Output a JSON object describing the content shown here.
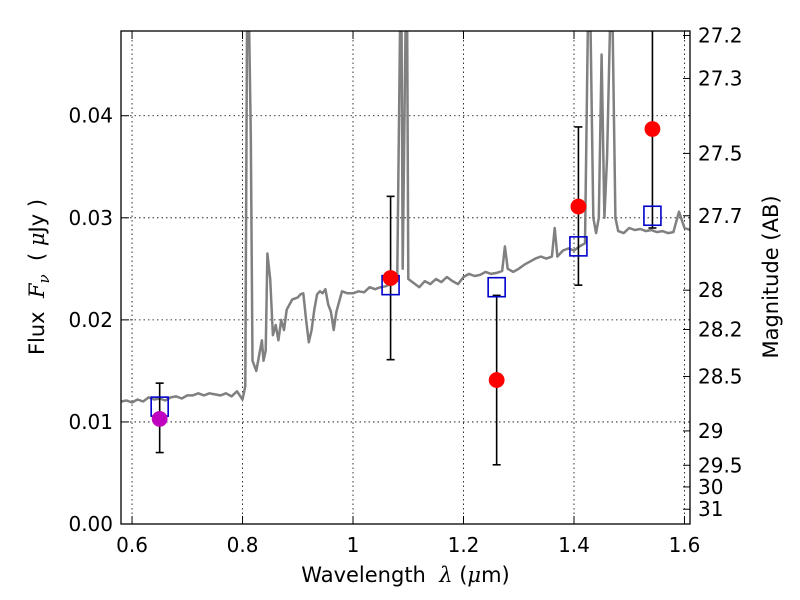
{
  "chart_data": {
    "type": "scatter",
    "title": "",
    "xlabel": {
      "pre": "Wavelength  ",
      "sym": "λ",
      "post": " (",
      "mu": "μ",
      "unit": "m)"
    },
    "ylabel": {
      "pre": "Flux  ",
      "sym": "F",
      "sub": "ν",
      "post": "  ( ",
      "mu": "μ",
      "unit": "Jy )"
    },
    "y2label": "Magnitude (AB)",
    "xlim": [
      0.58,
      1.61
    ],
    "ylim": [
      0.0,
      0.0483
    ],
    "grid": true,
    "x_ticks": [
      {
        "v": 0.6,
        "label": "0.6"
      },
      {
        "v": 0.8,
        "label": "0.8"
      },
      {
        "v": 1.0,
        "label": "1"
      },
      {
        "v": 1.2,
        "label": "1.2"
      },
      {
        "v": 1.4,
        "label": "1.4"
      },
      {
        "v": 1.6,
        "label": "1.6"
      }
    ],
    "y_ticks": [
      {
        "v": 0.0,
        "label": "0.00"
      },
      {
        "v": 0.01,
        "label": "0.01"
      },
      {
        "v": 0.02,
        "label": "0.02"
      },
      {
        "v": 0.03,
        "label": "0.03"
      },
      {
        "v": 0.04,
        "label": "0.04"
      }
    ],
    "mag_ticks": [
      {
        "v": 27.2,
        "label": "27.2"
      },
      {
        "v": 27.3,
        "label": "27.3"
      },
      {
        "v": 27.5,
        "label": "27.5"
      },
      {
        "v": 27.7,
        "label": "27.7"
      },
      {
        "v": 28,
        "label": "28"
      },
      {
        "v": 28.2,
        "label": "28.2"
      },
      {
        "v": 28.5,
        "label": "28.5"
      },
      {
        "v": 29,
        "label": "29"
      },
      {
        "v": 29.5,
        "label": "29.5"
      },
      {
        "v": 30,
        "label": "30"
      },
      {
        "v": 31,
        "label": "31"
      }
    ],
    "spectrum": {
      "color": "#808080",
      "points": [
        [
          0.58,
          0.012
        ],
        [
          0.59,
          0.0121
        ],
        [
          0.6,
          0.0119
        ],
        [
          0.61,
          0.0122
        ],
        [
          0.62,
          0.012
        ],
        [
          0.63,
          0.0124
        ],
        [
          0.64,
          0.0122
        ],
        [
          0.65,
          0.0123
        ],
        [
          0.66,
          0.0121
        ],
        [
          0.67,
          0.0124
        ],
        [
          0.68,
          0.0125
        ],
        [
          0.69,
          0.0123
        ],
        [
          0.7,
          0.0126
        ],
        [
          0.71,
          0.0126
        ],
        [
          0.72,
          0.0128
        ],
        [
          0.73,
          0.0126
        ],
        [
          0.74,
          0.0128
        ],
        [
          0.75,
          0.0127
        ],
        [
          0.76,
          0.0126
        ],
        [
          0.77,
          0.0128
        ],
        [
          0.78,
          0.0125
        ],
        [
          0.79,
          0.013
        ],
        [
          0.8,
          0.0122
        ],
        [
          0.805,
          0.0135
        ],
        [
          0.808,
          0.0483
        ],
        [
          0.812,
          0.0483
        ],
        [
          0.815,
          0.038
        ],
        [
          0.818,
          0.016
        ],
        [
          0.825,
          0.015
        ],
        [
          0.83,
          0.0165
        ],
        [
          0.835,
          0.018
        ],
        [
          0.838,
          0.016
        ],
        [
          0.842,
          0.017
        ],
        [
          0.845,
          0.0265
        ],
        [
          0.85,
          0.024
        ],
        [
          0.855,
          0.0185
        ],
        [
          0.86,
          0.0195
        ],
        [
          0.865,
          0.018
        ],
        [
          0.87,
          0.02
        ],
        [
          0.875,
          0.019
        ],
        [
          0.88,
          0.021
        ],
        [
          0.885,
          0.0215
        ],
        [
          0.89,
          0.022
        ],
        [
          0.9,
          0.0222
        ],
        [
          0.905,
          0.0225
        ],
        [
          0.91,
          0.0226
        ],
        [
          0.915,
          0.02
        ],
        [
          0.92,
          0.0178
        ],
        [
          0.925,
          0.019
        ],
        [
          0.93,
          0.021
        ],
        [
          0.935,
          0.0225
        ],
        [
          0.94,
          0.0228
        ],
        [
          0.945,
          0.0226
        ],
        [
          0.95,
          0.023
        ],
        [
          0.955,
          0.0215
        ],
        [
          0.96,
          0.0208
        ],
        [
          0.965,
          0.019
        ],
        [
          0.97,
          0.0208
        ],
        [
          0.975,
          0.0218
        ],
        [
          0.98,
          0.0228
        ],
        [
          0.99,
          0.0226
        ],
        [
          1.0,
          0.0226
        ],
        [
          1.01,
          0.0228
        ],
        [
          1.02,
          0.0227
        ],
        [
          1.03,
          0.0232
        ],
        [
          1.04,
          0.023
        ],
        [
          1.05,
          0.0232
        ],
        [
          1.06,
          0.0233
        ],
        [
          1.07,
          0.0236
        ],
        [
          1.08,
          0.0238
        ],
        [
          1.085,
          0.0483
        ],
        [
          1.088,
          0.0483
        ],
        [
          1.09,
          0.025
        ],
        [
          1.095,
          0.0483
        ],
        [
          1.098,
          0.0483
        ],
        [
          1.1,
          0.024
        ],
        [
          1.11,
          0.0236
        ],
        [
          1.12,
          0.0232
        ],
        [
          1.13,
          0.0238
        ],
        [
          1.14,
          0.0235
        ],
        [
          1.15,
          0.024
        ],
        [
          1.16,
          0.0237
        ],
        [
          1.17,
          0.0242
        ],
        [
          1.18,
          0.0238
        ],
        [
          1.19,
          0.0235
        ],
        [
          1.2,
          0.0242
        ],
        [
          1.21,
          0.0245
        ],
        [
          1.22,
          0.0243
        ],
        [
          1.23,
          0.0244
        ],
        [
          1.24,
          0.0247
        ],
        [
          1.25,
          0.0245
        ],
        [
          1.26,
          0.0246
        ],
        [
          1.27,
          0.0248
        ],
        [
          1.275,
          0.0272
        ],
        [
          1.28,
          0.025
        ],
        [
          1.29,
          0.0247
        ],
        [
          1.3,
          0.025
        ],
        [
          1.31,
          0.0254
        ],
        [
          1.32,
          0.0257
        ],
        [
          1.33,
          0.026
        ],
        [
          1.34,
          0.0262
        ],
        [
          1.35,
          0.026
        ],
        [
          1.36,
          0.0262
        ],
        [
          1.365,
          0.029
        ],
        [
          1.37,
          0.0262
        ],
        [
          1.38,
          0.0268
        ],
        [
          1.39,
          0.027
        ],
        [
          1.4,
          0.0268
        ],
        [
          1.41,
          0.0272
        ],
        [
          1.42,
          0.0275
        ],
        [
          1.425,
          0.0483
        ],
        [
          1.43,
          0.0483
        ],
        [
          1.435,
          0.03
        ],
        [
          1.44,
          0.0285
        ],
        [
          1.445,
          0.03
        ],
        [
          1.45,
          0.046
        ],
        [
          1.455,
          0.03
        ],
        [
          1.46,
          0.036
        ],
        [
          1.465,
          0.0483
        ],
        [
          1.47,
          0.0483
        ],
        [
          1.475,
          0.03
        ],
        [
          1.48,
          0.0287
        ],
        [
          1.49,
          0.0285
        ],
        [
          1.5,
          0.029
        ],
        [
          1.51,
          0.0288
        ],
        [
          1.52,
          0.0289
        ],
        [
          1.53,
          0.0287
        ],
        [
          1.54,
          0.0288
        ],
        [
          1.55,
          0.0286
        ],
        [
          1.56,
          0.0287
        ],
        [
          1.57,
          0.0285
        ],
        [
          1.58,
          0.0286
        ],
        [
          1.59,
          0.0306
        ],
        [
          1.6,
          0.029
        ],
        [
          1.61,
          0.0288
        ]
      ]
    },
    "model_points": {
      "color": "#0000cc",
      "points": [
        [
          0.65,
          0.0115
        ],
        [
          1.068,
          0.0234
        ],
        [
          1.26,
          0.0232
        ],
        [
          1.408,
          0.0272
        ],
        [
          1.542,
          0.0302
        ]
      ]
    },
    "observed_points": [
      {
        "x": 0.65,
        "y": 0.0103,
        "err_low": 0.0033,
        "err_high": 0.0035,
        "color": "#bf00bf"
      },
      {
        "x": 1.068,
        "y": 0.0241,
        "err_low": 0.008,
        "err_high": 0.008,
        "color": "#ff0000"
      },
      {
        "x": 1.26,
        "y": 0.0141,
        "err_low": 0.0083,
        "err_high": 0.0083,
        "color": "#ff0000"
      },
      {
        "x": 1.408,
        "y": 0.0311,
        "err_low": 0.0077,
        "err_high": 0.0078,
        "color": "#ff0000"
      },
      {
        "x": 1.542,
        "y": 0.0387,
        "err_low": 0.0097,
        "err_high": 0.01,
        "color": "#ff0000"
      }
    ]
  }
}
